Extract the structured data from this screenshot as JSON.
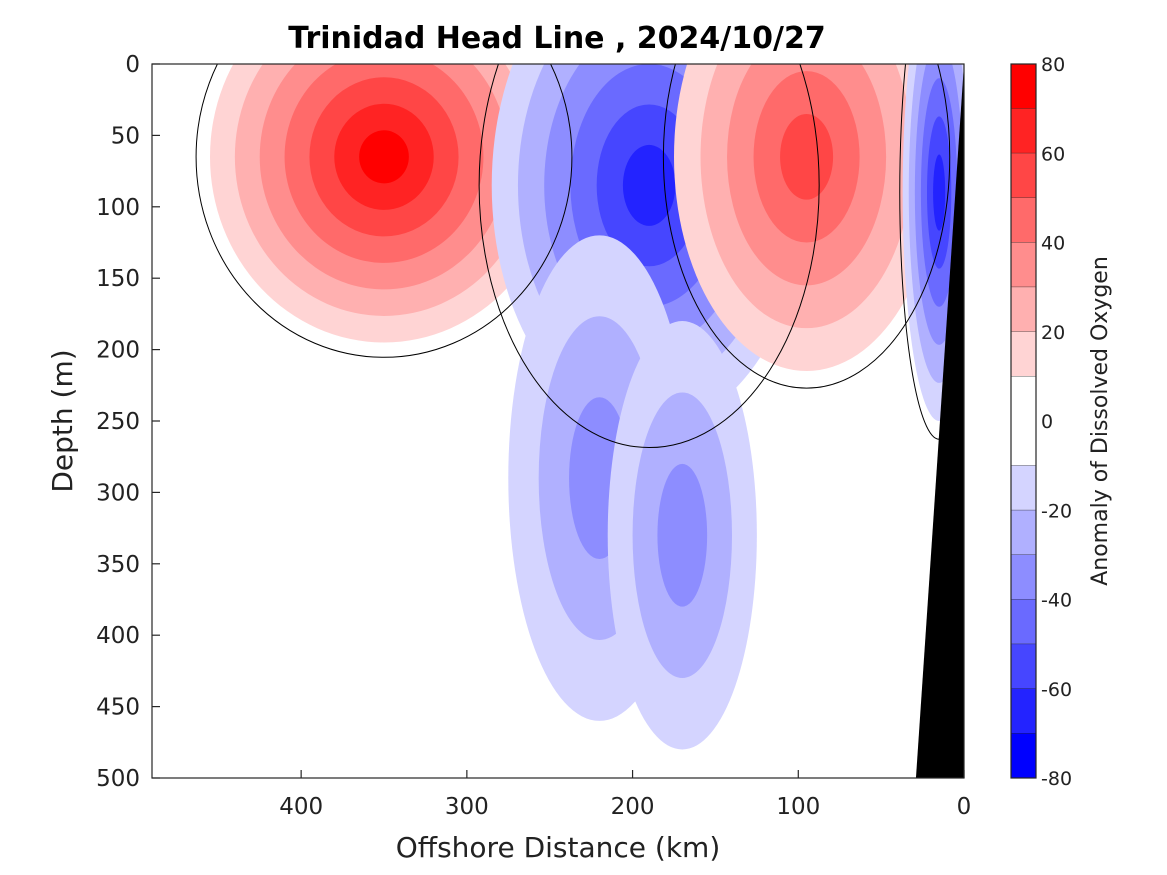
{
  "chart_data": {
    "type": "heatmap",
    "title": "Trinidad Head Line , 2024/10/27",
    "xlabel": "Offshore Distance (km)",
    "ylabel": "Depth (m)",
    "xlim": [
      490,
      0
    ],
    "ylim": [
      0,
      500
    ],
    "x_ticks": [
      "400",
      "300",
      "200",
      "100",
      "0"
    ],
    "y_ticks": [
      "0",
      "50",
      "100",
      "150",
      "200",
      "250",
      "300",
      "350",
      "400",
      "450",
      "500"
    ],
    "colorbar": {
      "label": "Anomaly of Dissolved Oxygen",
      "range": [
        -80,
        80
      ],
      "ticks": [
        "80",
        "60",
        "40",
        "20",
        "0",
        "-20",
        "-40",
        "-60",
        "-80"
      ],
      "levels": [
        {
          "lo": 70,
          "hi": 80,
          "color": "#ff0000"
        },
        {
          "lo": 60,
          "hi": 70,
          "color": "#ff2323"
        },
        {
          "lo": 50,
          "hi": 60,
          "color": "#ff4646"
        },
        {
          "lo": 40,
          "hi": 50,
          "color": "#ff6a6a"
        },
        {
          "lo": 30,
          "hi": 40,
          "color": "#ff8d8d"
        },
        {
          "lo": 20,
          "hi": 30,
          "color": "#ffb0b0"
        },
        {
          "lo": 10,
          "hi": 20,
          "color": "#ffd4d4"
        },
        {
          "lo": -10,
          "hi": 10,
          "color": "#ffffff"
        },
        {
          "lo": -20,
          "hi": -10,
          "color": "#d4d4ff"
        },
        {
          "lo": -30,
          "hi": -20,
          "color": "#b0b0ff"
        },
        {
          "lo": -40,
          "hi": -30,
          "color": "#8d8dff"
        },
        {
          "lo": -50,
          "hi": -40,
          "color": "#6a6aff"
        },
        {
          "lo": -60,
          "hi": -50,
          "color": "#4646ff"
        },
        {
          "lo": -70,
          "hi": -60,
          "color": "#2323ff"
        },
        {
          "lo": -80,
          "hi": -70,
          "color": "#0000ff"
        }
      ]
    },
    "features": [
      {
        "sign": "positive",
        "peak_value": 72,
        "x_km": 350,
        "depth_m": 65
      },
      {
        "sign": "negative",
        "peak_value": -68,
        "x_km": 190,
        "depth_m": 85
      },
      {
        "sign": "positive",
        "peak_value": 55,
        "x_km": 95,
        "depth_m": 65
      },
      {
        "sign": "negative",
        "peak_value": -65,
        "x_km": 15,
        "depth_m": 90
      },
      {
        "sign": "negative",
        "peak_value": -30,
        "x_km": 220,
        "depth_m": 290
      },
      {
        "sign": "negative",
        "peak_value": -30,
        "x_km": 170,
        "depth_m": 330
      }
    ],
    "shelf_color": "#000000",
    "grid": false
  }
}
